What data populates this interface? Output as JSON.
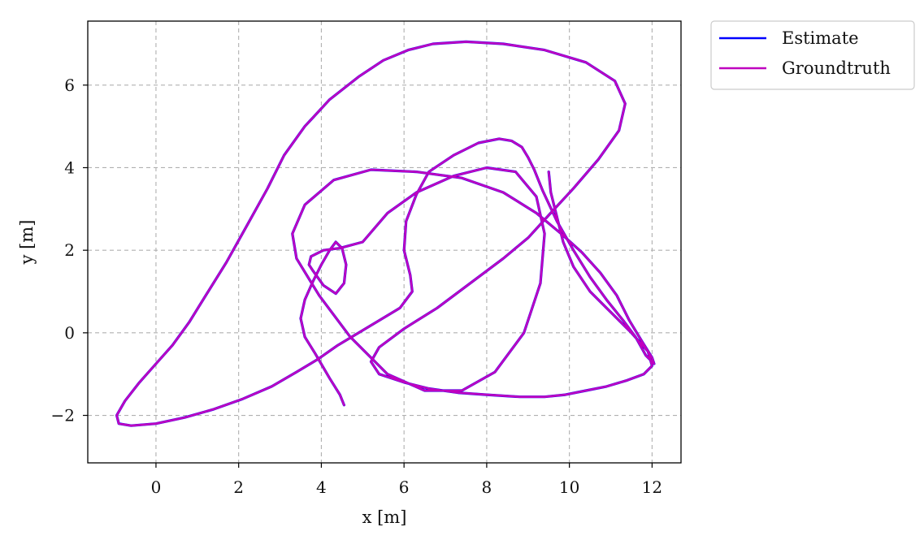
{
  "chart_data": {
    "type": "line",
    "title": "",
    "xlabel": "x [m]",
    "ylabel": "y [m]",
    "xlim": [
      -1.65,
      12.7
    ],
    "ylim": [
      -3.15,
      7.55
    ],
    "xticks": [
      0,
      2,
      4,
      6,
      8,
      10,
      12
    ],
    "yticks": [
      -2,
      0,
      2,
      4,
      6
    ],
    "x_tick_labels": [
      "0",
      "2",
      "4",
      "6",
      "8",
      "10",
      "12"
    ],
    "y_tick_labels": [
      "−2",
      "0",
      "2",
      "4",
      "6"
    ],
    "grid": true,
    "legend_position": "outside-top-right",
    "series": [
      {
        "name": "Estimate",
        "color": "#0000ff",
        "style": "solid",
        "x": [
          4.55,
          4.45,
          4.2,
          3.85,
          3.6,
          3.5,
          3.6,
          3.8,
          4.0,
          4.2,
          4.35,
          4.5,
          4.6,
          4.55,
          4.35,
          4.05,
          3.8,
          3.7,
          3.75,
          4.05,
          4.45,
          5.0,
          5.6,
          6.3,
          7.2,
          8.0,
          8.7,
          9.2,
          9.4,
          9.3,
          8.9,
          8.2,
          7.4,
          6.5,
          5.6,
          4.7,
          3.95,
          3.4,
          3.3,
          3.6,
          4.3,
          5.2,
          6.3,
          7.4,
          8.4,
          9.2,
          9.8,
          10.3,
          10.75,
          11.15,
          11.45,
          11.75,
          12.0,
          12.05,
          11.85,
          11.6,
          11.3,
          10.9,
          10.5,
          10.1,
          9.7,
          9.35,
          9.15,
          9.0,
          8.85,
          8.6,
          8.3,
          7.8,
          7.2,
          6.6,
          6.3,
          6.05,
          6.0,
          6.15,
          6.2,
          5.9,
          5.4,
          4.9,
          4.4,
          3.9,
          3.4,
          2.8,
          2.1,
          1.4,
          0.7,
          0.0,
          -0.6,
          -0.9,
          -0.95,
          -0.75,
          -0.4,
          0.0,
          0.4,
          0.8,
          1.2,
          1.7,
          2.2,
          2.7,
          3.1,
          3.6,
          4.2,
          4.9,
          5.5,
          6.1,
          6.7,
          7.5,
          8.4,
          9.4,
          10.4,
          11.1,
          11.35,
          11.2,
          10.7,
          10.1,
          9.5,
          9.0,
          8.4,
          7.6,
          6.8,
          6.0,
          5.4,
          5.2,
          5.4,
          6.0,
          6.6,
          7.3,
          8.0,
          8.8,
          9.4,
          9.9,
          10.4,
          10.9,
          11.4,
          11.8,
          12.0,
          11.9,
          11.5,
          11.0,
          10.5,
          10.1,
          9.85,
          9.7,
          9.55,
          9.5
        ],
        "y": [
          -1.75,
          -1.5,
          -1.1,
          -0.5,
          -0.1,
          0.35,
          0.8,
          1.25,
          1.65,
          2.0,
          2.2,
          2.05,
          1.65,
          1.2,
          0.95,
          1.15,
          1.5,
          1.65,
          1.85,
          2.0,
          2.05,
          2.2,
          2.9,
          3.4,
          3.8,
          4.0,
          3.9,
          3.3,
          2.4,
          1.2,
          0.0,
          -0.95,
          -1.4,
          -1.4,
          -1.0,
          -0.1,
          0.9,
          1.8,
          2.4,
          3.1,
          3.7,
          3.95,
          3.9,
          3.75,
          3.4,
          2.9,
          2.4,
          1.95,
          1.45,
          0.9,
          0.3,
          -0.2,
          -0.6,
          -0.75,
          -0.55,
          -0.1,
          0.3,
          0.8,
          1.35,
          2.0,
          2.7,
          3.45,
          3.95,
          4.25,
          4.5,
          4.65,
          4.7,
          4.6,
          4.3,
          3.9,
          3.35,
          2.7,
          2.0,
          1.4,
          1.0,
          0.6,
          0.3,
          0.0,
          -0.3,
          -0.65,
          -0.95,
          -1.3,
          -1.6,
          -1.85,
          -2.05,
          -2.2,
          -2.25,
          -2.2,
          -2.0,
          -1.65,
          -1.2,
          -0.75,
          -0.3,
          0.25,
          0.9,
          1.7,
          2.6,
          3.5,
          4.3,
          5.0,
          5.65,
          6.2,
          6.6,
          6.85,
          7.0,
          7.05,
          7.0,
          6.85,
          6.55,
          6.1,
          5.55,
          4.9,
          4.2,
          3.5,
          2.85,
          2.3,
          1.8,
          1.2,
          0.6,
          0.1,
          -0.35,
          -0.7,
          -1.0,
          -1.2,
          -1.35,
          -1.45,
          -1.5,
          -1.55,
          -1.55,
          -1.5,
          -1.4,
          -1.3,
          -1.15,
          -1.0,
          -0.8,
          -0.45,
          0.0,
          0.5,
          1.0,
          1.6,
          2.2,
          2.8,
          3.4,
          3.9
        ]
      },
      {
        "name": "Groundtruth",
        "color": "#bf00bf",
        "style": "solid",
        "x": [
          4.55,
          4.45,
          4.2,
          3.85,
          3.6,
          3.5,
          3.6,
          3.8,
          4.0,
          4.2,
          4.35,
          4.5,
          4.6,
          4.55,
          4.35,
          4.05,
          3.8,
          3.7,
          3.75,
          4.05,
          4.45,
          5.0,
          5.6,
          6.3,
          7.2,
          8.0,
          8.7,
          9.2,
          9.4,
          9.3,
          8.9,
          8.2,
          7.4,
          6.5,
          5.6,
          4.7,
          3.95,
          3.4,
          3.3,
          3.6,
          4.3,
          5.2,
          6.3,
          7.4,
          8.4,
          9.2,
          9.8,
          10.3,
          10.75,
          11.15,
          11.45,
          11.75,
          12.0,
          12.05,
          11.85,
          11.6,
          11.3,
          10.9,
          10.5,
          10.1,
          9.7,
          9.35,
          9.15,
          9.0,
          8.85,
          8.6,
          8.3,
          7.8,
          7.2,
          6.6,
          6.3,
          6.05,
          6.0,
          6.15,
          6.2,
          5.9,
          5.4,
          4.9,
          4.4,
          3.9,
          3.4,
          2.8,
          2.1,
          1.4,
          0.7,
          0.0,
          -0.6,
          -0.9,
          -0.95,
          -0.75,
          -0.4,
          0.0,
          0.4,
          0.8,
          1.2,
          1.7,
          2.2,
          2.7,
          3.1,
          3.6,
          4.2,
          4.9,
          5.5,
          6.1,
          6.7,
          7.5,
          8.4,
          9.4,
          10.4,
          11.1,
          11.35,
          11.2,
          10.7,
          10.1,
          9.5,
          9.0,
          8.4,
          7.6,
          6.8,
          6.0,
          5.4,
          5.2,
          5.4,
          6.0,
          6.6,
          7.3,
          8.0,
          8.8,
          9.4,
          9.9,
          10.4,
          10.9,
          11.4,
          11.8,
          12.0,
          11.9,
          11.5,
          11.0,
          10.5,
          10.1,
          9.85,
          9.7,
          9.55,
          9.5
        ],
        "y": [
          -1.75,
          -1.5,
          -1.1,
          -0.5,
          -0.1,
          0.35,
          0.8,
          1.25,
          1.65,
          2.0,
          2.2,
          2.05,
          1.65,
          1.2,
          0.95,
          1.15,
          1.5,
          1.65,
          1.85,
          2.0,
          2.05,
          2.2,
          2.9,
          3.4,
          3.8,
          4.0,
          3.9,
          3.3,
          2.4,
          1.2,
          0.0,
          -0.95,
          -1.4,
          -1.4,
          -1.0,
          -0.1,
          0.9,
          1.8,
          2.4,
          3.1,
          3.7,
          3.95,
          3.9,
          3.75,
          3.4,
          2.9,
          2.4,
          1.95,
          1.45,
          0.9,
          0.3,
          -0.2,
          -0.6,
          -0.75,
          -0.55,
          -0.1,
          0.3,
          0.8,
          1.35,
          2.0,
          2.7,
          3.45,
          3.95,
          4.25,
          4.5,
          4.65,
          4.7,
          4.6,
          4.3,
          3.9,
          3.35,
          2.7,
          2.0,
          1.4,
          1.0,
          0.6,
          0.3,
          0.0,
          -0.3,
          -0.65,
          -0.95,
          -1.3,
          -1.6,
          -1.85,
          -2.05,
          -2.2,
          -2.25,
          -2.2,
          -2.0,
          -1.65,
          -1.2,
          -0.75,
          -0.3,
          0.25,
          0.9,
          1.7,
          2.6,
          3.5,
          4.3,
          5.0,
          5.65,
          6.2,
          6.6,
          6.85,
          7.0,
          7.05,
          7.0,
          6.85,
          6.55,
          6.1,
          5.55,
          4.9,
          4.2,
          3.5,
          2.85,
          2.3,
          1.8,
          1.2,
          0.6,
          0.1,
          -0.35,
          -0.7,
          -1.0,
          -1.2,
          -1.35,
          -1.45,
          -1.5,
          -1.55,
          -1.55,
          -1.5,
          -1.4,
          -1.3,
          -1.15,
          -1.0,
          -0.8,
          -0.45,
          0.0,
          0.5,
          1.0,
          1.6,
          2.2,
          2.8,
          3.4,
          3.9
        ]
      }
    ]
  }
}
